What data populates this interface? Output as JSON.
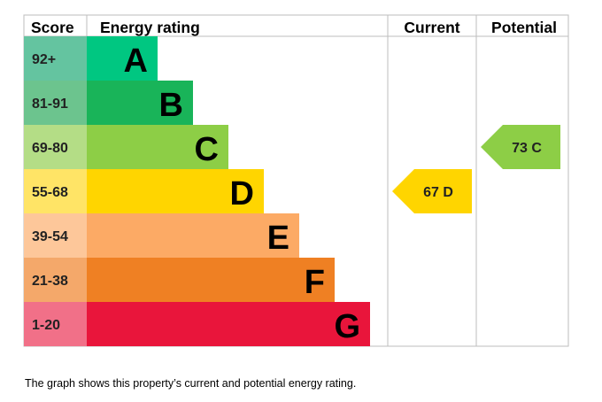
{
  "header": {
    "score": "Score",
    "energy_rating": "Energy rating",
    "current": "Current",
    "potential": "Potential"
  },
  "chart_data": {
    "type": "bar",
    "bands": [
      {
        "score": "92+",
        "letter": "A",
        "color": "#00c781",
        "score_bg": "#64c4a0"
      },
      {
        "score": "81-91",
        "letter": "B",
        "color": "#19b459",
        "score_bg": "#6cc48e"
      },
      {
        "score": "69-80",
        "letter": "C",
        "color": "#8dce46",
        "score_bg": "#b4dd86"
      },
      {
        "score": "55-68",
        "letter": "D",
        "color": "#ffd500",
        "score_bg": "#ffe466"
      },
      {
        "score": "39-54",
        "letter": "E",
        "color": "#fcaa65",
        "score_bg": "#fdc79a"
      },
      {
        "score": "21-38",
        "letter": "F",
        "color": "#ef8023",
        "score_bg": "#f4a86a"
      },
      {
        "score": "1-20",
        "letter": "G",
        "color": "#e9153b",
        "score_bg": "#f17088"
      }
    ],
    "current": {
      "value": 67,
      "letter": "D",
      "label": "67  D",
      "band_index": 3,
      "color": "#ffd500"
    },
    "potential": {
      "value": 73,
      "letter": "C",
      "label": "73  C",
      "band_index": 2,
      "color": "#8dce46"
    }
  },
  "caption": "The graph shows this property’s current and potential energy rating."
}
